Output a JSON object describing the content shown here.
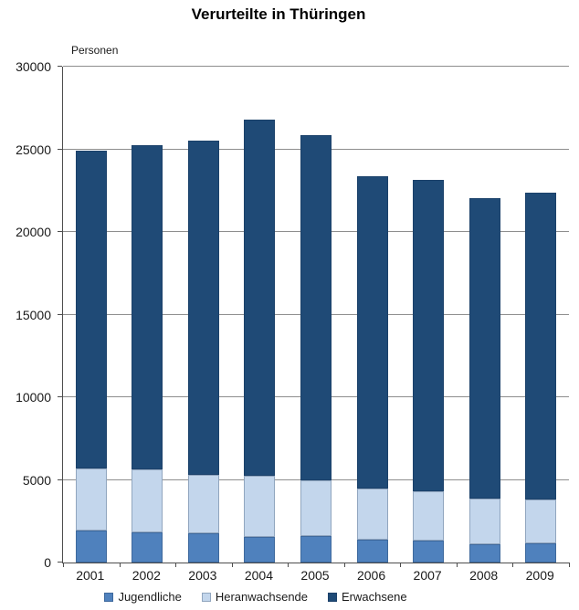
{
  "chart_data": {
    "type": "bar",
    "stacked": true,
    "title": "Verurteilte in Thüringen",
    "ylabel": "Personen",
    "xlabel": "",
    "categories": [
      "2001",
      "2002",
      "2003",
      "2004",
      "2005",
      "2006",
      "2007",
      "2008",
      "2009"
    ],
    "series": [
      {
        "name": "Jugendliche",
        "color": "#4f81bd",
        "values": [
          1950,
          1850,
          1750,
          1550,
          1600,
          1400,
          1300,
          1100,
          1150
        ]
      },
      {
        "name": "Heranwachsende",
        "color": "#c3d6ec",
        "values": [
          3750,
          3800,
          3550,
          3700,
          3350,
          3100,
          3000,
          2750,
          2650
        ]
      },
      {
        "name": "Erwachsene",
        "color": "#1f4a76",
        "values": [
          19200,
          19600,
          20200,
          21550,
          20900,
          18850,
          18850,
          18200,
          18550
        ]
      }
    ],
    "totals": [
      24900,
      25250,
      25500,
      26800,
      25850,
      23350,
      23150,
      22050,
      22350
    ],
    "ylim": [
      0,
      30000
    ],
    "ytick_interval": 5000,
    "yticks": [
      0,
      5000,
      10000,
      15000,
      20000,
      25000,
      30000
    ],
    "grid": true,
    "legend_position": "bottom",
    "colors": {
      "gridline": "#8e8e8e",
      "axis": "#4d4d4d",
      "text": "#1a1a1a"
    }
  }
}
